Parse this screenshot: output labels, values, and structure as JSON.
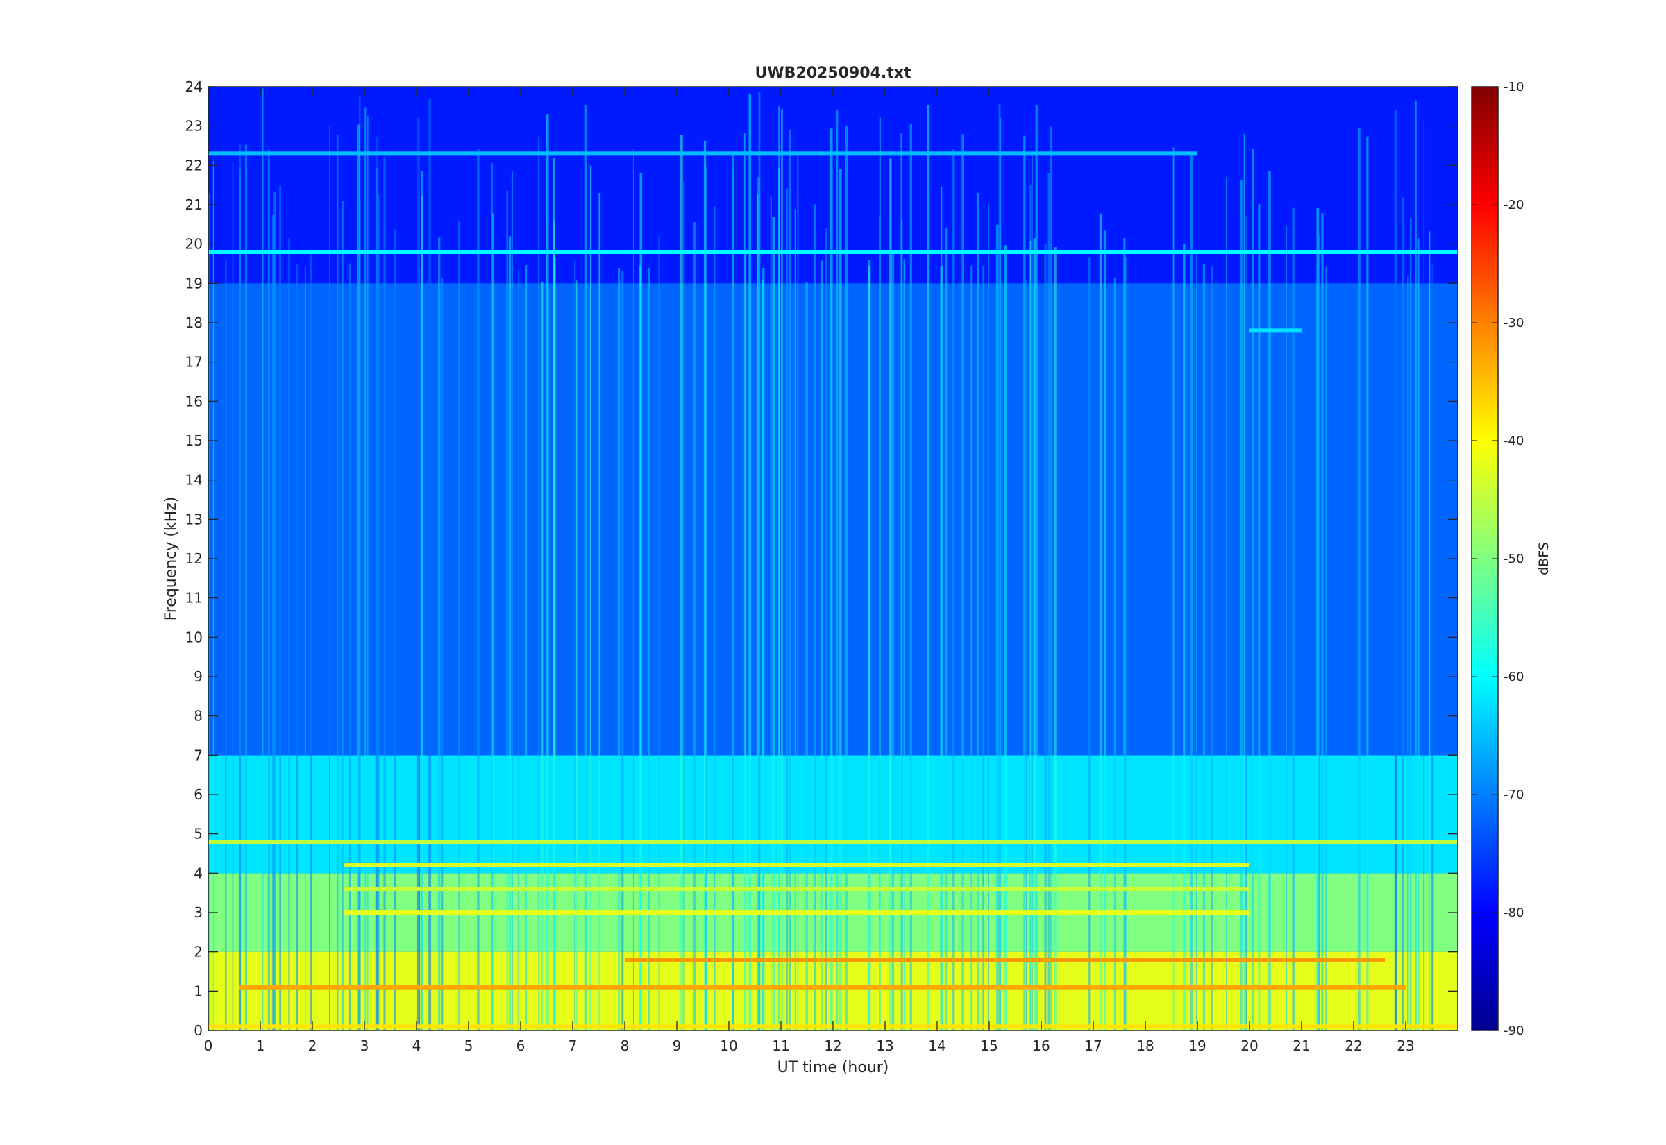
{
  "chart_data": {
    "type": "heatmap",
    "title": "UWB20250904.txt",
    "xlabel": "UT time (hour)",
    "ylabel": "Frequency (kHz)",
    "colorbar_label": "dBFS",
    "xlim": [
      0,
      24
    ],
    "ylim": [
      0,
      24
    ],
    "clim": [
      -90,
      -10
    ],
    "colormap": "jet",
    "x_ticks": [
      "0",
      "1",
      "2",
      "3",
      "4",
      "5",
      "6",
      "7",
      "8",
      "9",
      "10",
      "11",
      "12",
      "13",
      "14",
      "15",
      "16",
      "17",
      "18",
      "19",
      "20",
      "21",
      "22",
      "23"
    ],
    "y_ticks": [
      "0",
      "1",
      "2",
      "3",
      "4",
      "5",
      "6",
      "7",
      "8",
      "9",
      "10",
      "11",
      "12",
      "13",
      "14",
      "15",
      "16",
      "17",
      "18",
      "19",
      "20",
      "21",
      "22",
      "23",
      "24"
    ],
    "colorbar_ticks": [
      "-90",
      "-80",
      "-70",
      "-60",
      "-50",
      "-40",
      "-30",
      "-20",
      "-10"
    ],
    "background_level_dbfs": {
      "0-2kHz": -42,
      "2-4kHz": -50,
      "4-7kHz": -62,
      "7-19kHz": -72,
      "19-24kHz": -78
    },
    "tones": [
      {
        "freq_khz": 19.8,
        "level_dbfs": -60,
        "t_start": 0,
        "t_end": 24
      },
      {
        "freq_khz": 22.3,
        "level_dbfs": -65,
        "t_start": 0,
        "t_end": 19
      },
      {
        "freq_khz": 17.8,
        "level_dbfs": -62,
        "t_start": 20,
        "t_end": 21
      },
      {
        "freq_khz": 4.8,
        "level_dbfs": -45,
        "t_start": 0,
        "t_end": 24
      },
      {
        "freq_khz": 4.2,
        "level_dbfs": -43,
        "t_start": 2.6,
        "t_end": 20
      },
      {
        "freq_khz": 3.6,
        "level_dbfs": -44,
        "t_start": 2.6,
        "t_end": 20
      },
      {
        "freq_khz": 3.0,
        "level_dbfs": -42,
        "t_start": 2.6,
        "t_end": 20
      },
      {
        "freq_khz": 1.8,
        "level_dbfs": -32,
        "t_start": 8,
        "t_end": 22.6
      },
      {
        "freq_khz": 1.1,
        "level_dbfs": -33,
        "t_start": 0.6,
        "t_end": 23
      },
      {
        "freq_khz": 0.1,
        "level_dbfs": -38,
        "t_start": 0,
        "t_end": 24
      }
    ]
  }
}
